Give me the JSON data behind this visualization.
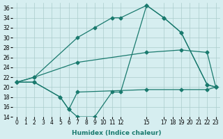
{
  "xlabel": "Humidex (Indice chaleur)",
  "bg_color": "#d6eef0",
  "grid_color": "#aacccc",
  "line_color": "#1a7a6e",
  "xlim": [
    -0.5,
    23.5
  ],
  "ylim": [
    14,
    37
  ],
  "xticks": [
    0,
    1,
    2,
    3,
    4,
    5,
    6,
    7,
    8,
    9,
    10,
    11,
    12,
    15,
    17,
    18,
    19,
    20,
    21,
    22,
    23
  ],
  "yticks": [
    14,
    16,
    18,
    20,
    22,
    24,
    26,
    28,
    30,
    32,
    34,
    36
  ],
  "curve1_x": [
    0,
    2,
    7,
    9,
    11,
    12,
    15,
    17,
    19,
    22,
    23
  ],
  "curve1_y": [
    21,
    22,
    30,
    32,
    34,
    34,
    36.5,
    34,
    31,
    20.5,
    20
  ],
  "curve2_x": [
    0,
    2,
    5,
    6,
    7,
    9,
    11,
    12,
    15,
    17,
    19,
    22,
    23
  ],
  "curve2_y": [
    21,
    21,
    18,
    15.5,
    14,
    14,
    19,
    19,
    36.5,
    34,
    31,
    20.5,
    20
  ],
  "curve3_x": [
    0,
    2,
    7,
    15,
    19,
    22,
    23
  ],
  "curve3_y": [
    21,
    22,
    25,
    27,
    27.5,
    27,
    20
  ],
  "curve4_x": [
    0,
    2,
    5,
    6,
    7,
    15,
    19,
    22,
    23
  ],
  "curve4_y": [
    21,
    21,
    18,
    15.5,
    19,
    19.5,
    19.5,
    19.5,
    20
  ]
}
